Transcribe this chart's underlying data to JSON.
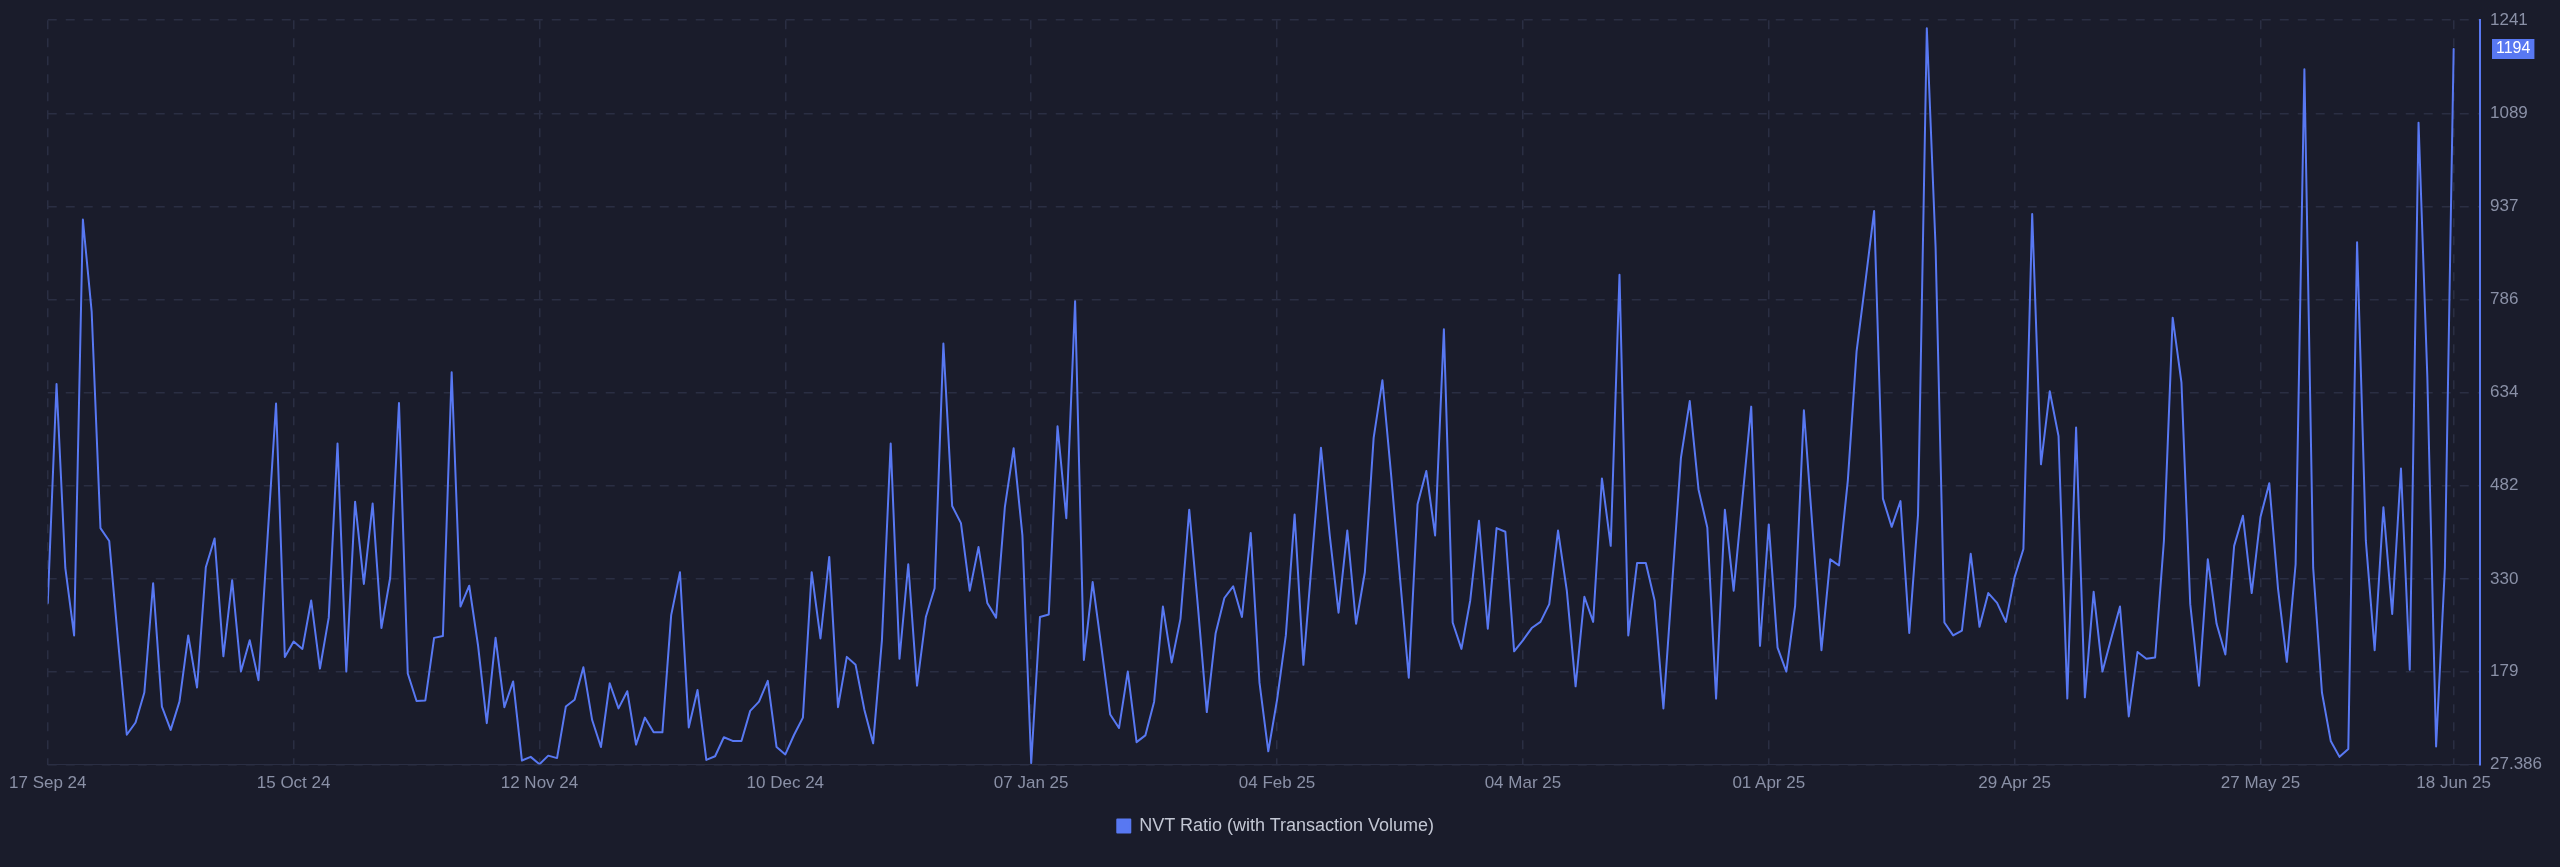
{
  "chart_data": {
    "type": "line",
    "x": [
      "2024-09-17",
      "2024-09-18",
      "2024-09-19",
      "2024-09-20",
      "2024-09-21",
      "2024-09-22",
      "2024-09-23",
      "2024-09-24",
      "2024-09-25",
      "2024-09-26",
      "2024-09-27",
      "2024-09-28",
      "2024-09-29",
      "2024-09-30",
      "2024-10-01",
      "2024-10-02",
      "2024-10-03",
      "2024-10-04",
      "2024-10-05",
      "2024-10-06",
      "2024-10-07",
      "2024-10-08",
      "2024-10-09",
      "2024-10-10",
      "2024-10-11",
      "2024-10-12",
      "2024-10-13",
      "2024-10-14",
      "2024-10-15",
      "2024-10-16",
      "2024-10-17",
      "2024-10-18",
      "2024-10-19",
      "2024-10-20",
      "2024-10-21",
      "2024-10-22",
      "2024-10-23",
      "2024-10-24",
      "2024-10-25",
      "2024-10-26",
      "2024-10-27",
      "2024-10-28",
      "2024-10-29",
      "2024-10-30",
      "2024-10-31",
      "2024-11-01",
      "2024-11-02",
      "2024-11-03",
      "2024-11-04",
      "2024-11-05",
      "2024-11-06",
      "2024-11-07",
      "2024-11-08",
      "2024-11-09",
      "2024-11-10",
      "2024-11-11",
      "2024-11-12",
      "2024-11-13",
      "2024-11-14",
      "2024-11-15",
      "2024-11-16",
      "2024-11-17",
      "2024-11-18",
      "2024-11-19",
      "2024-11-20",
      "2024-11-21",
      "2024-11-22",
      "2024-11-23",
      "2024-11-24",
      "2024-11-25",
      "2024-11-26",
      "2024-11-27",
      "2024-11-28",
      "2024-11-29",
      "2024-11-30",
      "2024-12-01",
      "2024-12-02",
      "2024-12-03",
      "2024-12-04",
      "2024-12-05",
      "2024-12-06",
      "2024-12-07",
      "2024-12-08",
      "2024-12-09",
      "2024-12-10",
      "2024-12-11",
      "2024-12-12",
      "2024-12-13",
      "2024-12-14",
      "2024-12-15",
      "2024-12-16",
      "2024-12-17",
      "2024-12-18",
      "2024-12-19",
      "2024-12-20",
      "2024-12-21",
      "2024-12-22",
      "2024-12-23",
      "2024-12-24",
      "2024-12-25",
      "2024-12-26",
      "2024-12-27",
      "2024-12-28",
      "2024-12-29",
      "2024-12-30",
      "2024-12-31",
      "2025-01-01",
      "2025-01-02",
      "2025-01-03",
      "2025-01-04",
      "2025-01-05",
      "2025-01-06",
      "2025-01-07",
      "2025-01-08",
      "2025-01-09",
      "2025-01-10",
      "2025-01-11",
      "2025-01-12",
      "2025-01-13",
      "2025-01-14",
      "2025-01-15",
      "2025-01-16",
      "2025-01-17",
      "2025-01-18",
      "2025-01-19",
      "2025-01-20",
      "2025-01-21",
      "2025-01-22",
      "2025-01-23",
      "2025-01-24",
      "2025-01-25",
      "2025-01-26",
      "2025-01-27",
      "2025-01-28",
      "2025-01-29",
      "2025-01-30",
      "2025-01-31",
      "2025-02-01",
      "2025-02-02",
      "2025-02-03",
      "2025-02-04",
      "2025-02-05",
      "2025-02-06",
      "2025-02-07",
      "2025-02-08",
      "2025-02-09",
      "2025-02-10",
      "2025-02-11",
      "2025-02-12",
      "2025-02-13",
      "2025-02-14",
      "2025-02-15",
      "2025-02-16",
      "2025-02-17",
      "2025-02-18",
      "2025-02-19",
      "2025-02-20",
      "2025-02-21",
      "2025-02-22",
      "2025-02-23",
      "2025-02-24",
      "2025-02-25",
      "2025-02-26",
      "2025-02-27",
      "2025-02-28",
      "2025-03-01",
      "2025-03-02",
      "2025-03-03",
      "2025-03-04",
      "2025-03-05",
      "2025-03-06",
      "2025-03-07",
      "2025-03-08",
      "2025-03-09",
      "2025-03-10",
      "2025-03-11",
      "2025-03-12",
      "2025-03-13",
      "2025-03-14",
      "2025-03-15",
      "2025-03-16",
      "2025-03-17",
      "2025-03-18",
      "2025-03-19",
      "2025-03-20",
      "2025-03-21",
      "2025-03-22",
      "2025-03-23",
      "2025-03-24",
      "2025-03-25",
      "2025-03-26",
      "2025-03-27",
      "2025-03-28",
      "2025-03-29",
      "2025-03-30",
      "2025-03-31",
      "2025-04-01",
      "2025-04-02",
      "2025-04-03",
      "2025-04-04",
      "2025-04-05",
      "2025-04-06",
      "2025-04-07",
      "2025-04-08",
      "2025-04-09",
      "2025-04-10",
      "2025-04-11",
      "2025-04-12",
      "2025-04-13",
      "2025-04-14",
      "2025-04-15",
      "2025-04-16",
      "2025-04-17",
      "2025-04-18",
      "2025-04-19",
      "2025-04-20",
      "2025-04-21",
      "2025-04-22",
      "2025-04-23",
      "2025-04-24",
      "2025-04-25",
      "2025-04-26",
      "2025-04-27",
      "2025-04-28",
      "2025-04-29",
      "2025-04-30",
      "2025-05-01",
      "2025-05-02",
      "2025-05-03",
      "2025-05-04",
      "2025-05-05",
      "2025-05-06",
      "2025-05-07",
      "2025-05-08",
      "2025-05-09",
      "2025-05-10",
      "2025-05-11",
      "2025-05-12",
      "2025-05-13",
      "2025-05-14",
      "2025-05-15",
      "2025-05-16",
      "2025-05-17",
      "2025-05-18",
      "2025-05-19",
      "2025-05-20",
      "2025-05-21",
      "2025-05-22",
      "2025-05-23",
      "2025-05-24",
      "2025-05-25",
      "2025-05-26",
      "2025-05-27",
      "2025-05-28",
      "2025-05-29",
      "2025-05-30",
      "2025-05-31",
      "2025-06-01",
      "2025-06-02",
      "2025-06-03",
      "2025-06-04",
      "2025-06-05",
      "2025-06-06",
      "2025-06-07",
      "2025-06-08",
      "2025-06-09",
      "2025-06-10",
      "2025-06-11",
      "2025-06-12",
      "2025-06-13",
      "2025-06-14",
      "2025-06-15",
      "2025-06-16",
      "2025-06-17",
      "2025-06-18"
    ],
    "series": [
      {
        "name": "NVT Ratio (with Transaction Volume)",
        "color": "#5878f2",
        "values": [
          291,
          648,
          348,
          238,
          916,
          766,
          413,
          392,
          230,
          76,
          96,
          145,
          323,
          122,
          84,
          130,
          238,
          153,
          349,
          396,
          204,
          328,
          179,
          230,
          165,
          390,
          616,
          203,
          228,
          216,
          295,
          184,
          267,
          551,
          179,
          456,
          322,
          453,
          250,
          332,
          617,
          176,
          131,
          132,
          234,
          237,
          667,
          285,
          319,
          222,
          95,
          234,
          121,
          163,
          34,
          40,
          28,
          42,
          38,
          122,
          133,
          186,
          100,
          56,
          160,
          119,
          147,
          60,
          104,
          80,
          80,
          271,
          341,
          88,
          149,
          35,
          41,
          72,
          66,
          66,
          115,
          130,
          164,
          56,
          44,
          76,
          104,
          341,
          233,
          366,
          121,
          203,
          190,
          117,
          62,
          230,
          551,
          200,
          354,
          156,
          268,
          315,
          714,
          449,
          421,
          311,
          382,
          291,
          267,
          447,
          543,
          401,
          30,
          268,
          272,
          579,
          429,
          783,
          198,
          325,
          218,
          109,
          87,
          179,
          64,
          75,
          130,
          285,
          194,
          265,
          443,
          283,
          113,
          241,
          299,
          318,
          268,
          405,
          161,
          49,
          133,
          238,
          435,
          190,
          366,
          544,
          401,
          275,
          409,
          257,
          341,
          560,
          654,
          498,
          332,
          169,
          452,
          506,
          401,
          737,
          259,
          216,
          295,
          425,
          249,
          413,
          407,
          212,
          230,
          250,
          260,
          289,
          409,
          311,
          155,
          301,
          260,
          494,
          384,
          826,
          238,
          356,
          356,
          295,
          119,
          323,
          528,
          620,
          476,
          414,
          135,
          443,
          311,
          461,
          611,
          221,
          419,
          218,
          179,
          286,
          605,
          409,
          214,
          362,
          352,
          490,
          701,
          814,
          930,
          461,
          415,
          457,
          242,
          435,
          1228,
          870,
          259,
          238,
          246,
          371,
          252,
          307,
          291,
          260,
          333,
          379,
          925,
          517,
          636,
          563,
          135,
          577,
          137,
          309,
          179,
          233,
          285,
          106,
          211,
          200,
          202,
          392,
          756,
          650,
          289,
          156,
          362,
          257,
          207,
          384,
          433,
          307,
          431,
          486,
          314,
          195,
          354,
          1161,
          348,
          145,
          66,
          40,
          53,
          879,
          392,
          214,
          447,
          273,
          510,
          182,
          1074,
          660,
          57,
          348,
          1194
        ]
      }
    ],
    "xlim": [
      "2024-09-17",
      "2025-06-21"
    ],
    "xticks": [
      {
        "value": "2024-09-17",
        "label": "17 Sep 24"
      },
      {
        "value": "2024-10-15",
        "label": "15 Oct 24"
      },
      {
        "value": "2024-11-12",
        "label": "12 Nov 24"
      },
      {
        "value": "2024-12-10",
        "label": "10 Dec 24"
      },
      {
        "value": "2025-01-07",
        "label": "07 Jan 25"
      },
      {
        "value": "2025-02-04",
        "label": "04 Feb 25"
      },
      {
        "value": "2025-03-04",
        "label": "04 Mar 25"
      },
      {
        "value": "2025-04-01",
        "label": "01 Apr 25"
      },
      {
        "value": "2025-04-29",
        "label": "29 Apr 25"
      },
      {
        "value": "2025-05-27",
        "label": "27 May 25"
      },
      {
        "value": "2025-06-18",
        "label": "18 Jun 25"
      }
    ],
    "ylim": [
      27.386,
      1241
    ],
    "yticks": [
      27.386,
      179,
      330,
      482,
      634,
      786,
      937,
      1089,
      1241
    ],
    "annotations": [
      {
        "text": "1194",
        "x": "2025-06-18",
        "y": 1194
      }
    ],
    "grid": true,
    "legend": "bottom"
  }
}
